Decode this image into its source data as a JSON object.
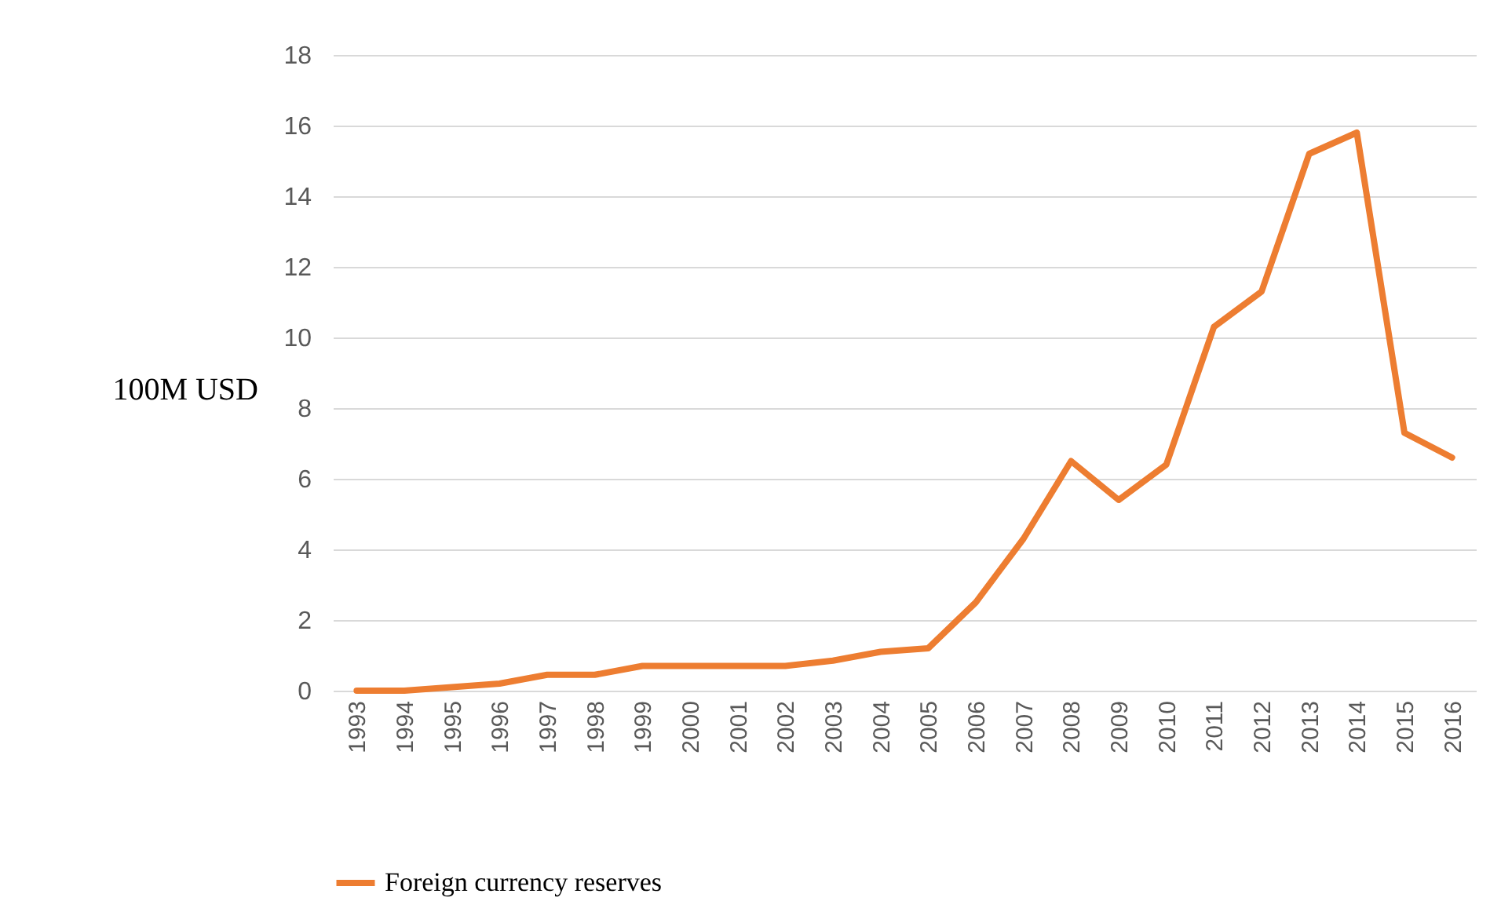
{
  "chart_data": {
    "type": "line",
    "ylabel": "100M USD",
    "categories": [
      "1993",
      "1994",
      "1995",
      "1996",
      "1997",
      "1998",
      "1999",
      "2000",
      "2001",
      "2002",
      "2003",
      "2004",
      "2005",
      "2006",
      "2007",
      "2008",
      "2009",
      "2010",
      "2011",
      "2012",
      "2013",
      "2014",
      "2015",
      "2016"
    ],
    "series": [
      {
        "name": "Foreign currency reserves",
        "color": "#ed7d31",
        "values": [
          0,
          0,
          0.1,
          0.2,
          0.45,
          0.45,
          0.7,
          0.7,
          0.7,
          0.7,
          0.85,
          1.1,
          1.2,
          2.5,
          4.3,
          6.5,
          5.4,
          6.4,
          10.3,
          11.3,
          15.2,
          15.8,
          7.3,
          6.6
        ]
      }
    ],
    "ylim": [
      0,
      18
    ],
    "yticks": [
      0,
      2,
      4,
      6,
      8,
      10,
      12,
      14,
      16,
      18
    ],
    "grid": "y",
    "legend": "bottom",
    "marker": "none",
    "line_style": "solid"
  }
}
